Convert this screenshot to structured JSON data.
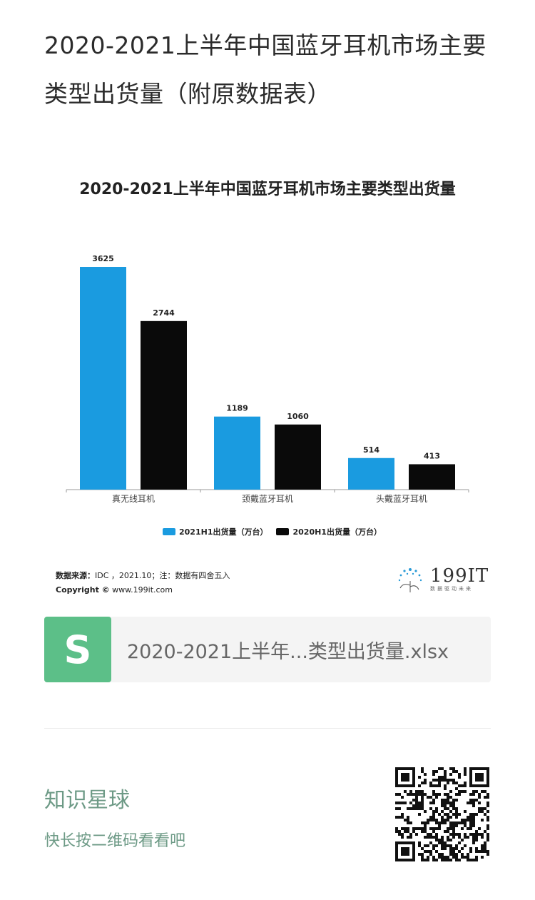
{
  "post": {
    "title": "2020-2021上半年中国蓝牙耳机市场主要类型出货量（附原数据表）"
  },
  "chart_data": {
    "type": "bar",
    "title": "2020-2021上半年中国蓝牙耳机市场主要类型出货量",
    "categories": [
      "真无线耳机",
      "颈戴蓝牙耳机",
      "头戴蓝牙耳机"
    ],
    "series": [
      {
        "name": "2021H1出货量（万台）",
        "values": [
          3625,
          1189,
          514
        ],
        "color": "#1a9be0"
      },
      {
        "name": "2020H1出货量（万台）",
        "values": [
          2744,
          1060,
          413
        ],
        "color": "#0a0a0a"
      }
    ],
    "ylim": [
      0,
      3625
    ],
    "grid": false,
    "legend": "bottom-center",
    "source_label": "数据来源：",
    "source_text": "IDC ，2021.10；注：数据有四舍五入",
    "copyright_label": "Copyright ©",
    "copyright_text": "www.199it.com"
  },
  "logo": {
    "text": "199IT",
    "slogan": "数据驱动未来"
  },
  "file": {
    "icon": "S",
    "name": "2020-2021上半年...类型出货量.xlsx"
  },
  "footer": {
    "title": "知识星球",
    "subtitle": "快长按二维码看看吧"
  }
}
